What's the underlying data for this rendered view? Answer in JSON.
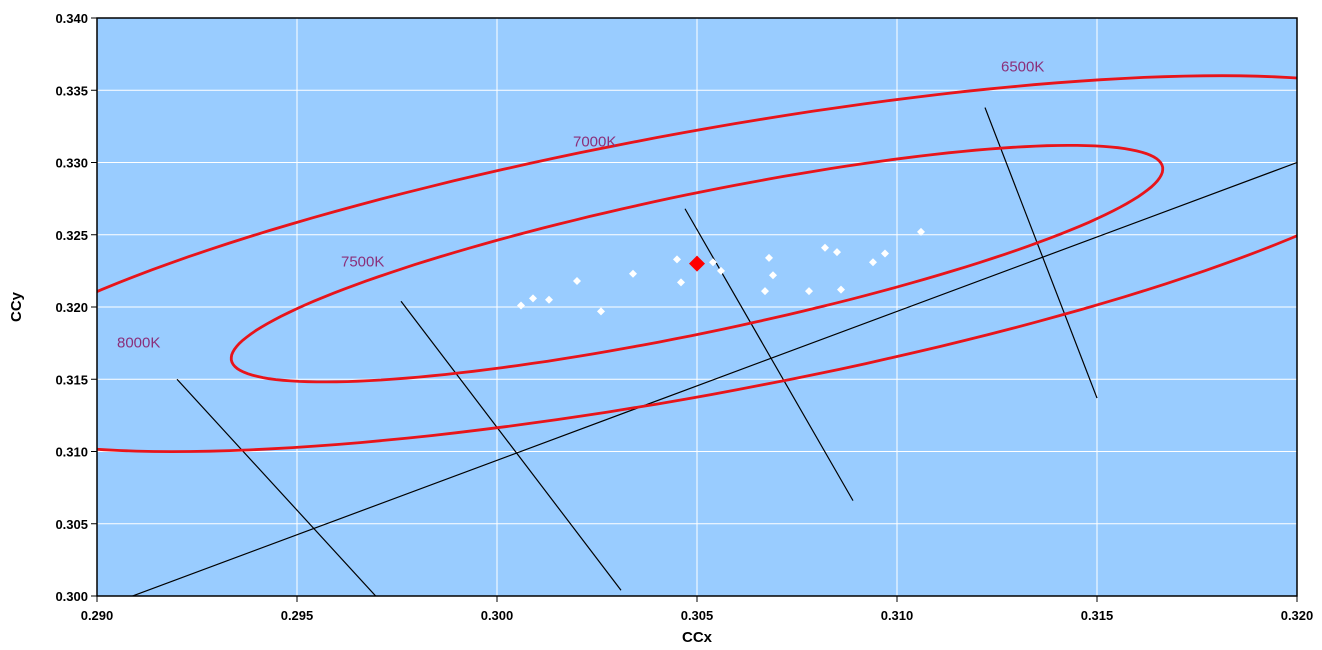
{
  "chart_data": {
    "type": "scatter",
    "title": "",
    "xlabel": "CCx",
    "ylabel": "CCy",
    "xlim": [
      0.29,
      0.32
    ],
    "ylim": [
      0.3,
      0.34
    ],
    "xticks": [
      "0.290",
      "0.295",
      "0.300",
      "0.305",
      "0.310",
      "0.315",
      "0.320"
    ],
    "yticks": [
      "0.300",
      "0.305",
      "0.310",
      "0.315",
      "0.320",
      "0.325",
      "0.330",
      "0.335",
      "0.340"
    ],
    "grid": true,
    "colors": {
      "plot_background": "#99ccff",
      "grid": "#ffffff",
      "ellipse": "#e8141a",
      "points": "#ffffff",
      "mean_point": "#ff0000",
      "lines": "#000000",
      "cct_labels": "#8b2f7a"
    },
    "points": [
      {
        "x": 0.3006,
        "y": 0.3201
      },
      {
        "x": 0.3009,
        "y": 0.3206
      },
      {
        "x": 0.3013,
        "y": 0.3205
      },
      {
        "x": 0.302,
        "y": 0.3218
      },
      {
        "x": 0.3026,
        "y": 0.3197
      },
      {
        "x": 0.3034,
        "y": 0.3223
      },
      {
        "x": 0.3045,
        "y": 0.3233
      },
      {
        "x": 0.3046,
        "y": 0.3217
      },
      {
        "x": 0.3054,
        "y": 0.3231
      },
      {
        "x": 0.3056,
        "y": 0.3225
      },
      {
        "x": 0.3067,
        "y": 0.3211
      },
      {
        "x": 0.3068,
        "y": 0.3234
      },
      {
        "x": 0.3069,
        "y": 0.3222
      },
      {
        "x": 0.3078,
        "y": 0.3211
      },
      {
        "x": 0.3082,
        "y": 0.3241
      },
      {
        "x": 0.3085,
        "y": 0.3238
      },
      {
        "x": 0.3086,
        "y": 0.3212
      },
      {
        "x": 0.3094,
        "y": 0.3231
      },
      {
        "x": 0.3097,
        "y": 0.3237
      },
      {
        "x": 0.3106,
        "y": 0.3252
      }
    ],
    "mean_point": {
      "x": 0.305,
      "y": 0.323
    },
    "ellipses": [
      {
        "center": [
          0.305,
          0.323
        ],
        "semi_major": 0.0136,
        "semi_minor": 0.0042,
        "angle_deg": 32.9
      },
      {
        "center": [
          0.305,
          0.323
        ],
        "semi_major": 0.0212,
        "semi_minor": 0.0081,
        "angle_deg": 31.3
      }
    ],
    "blackbody_line": {
      "x": [
        0.2905,
        0.32
      ],
      "y": [
        0.2996,
        0.33
      ]
    },
    "isotemperature_lines": [
      {
        "label": "8000K",
        "x": [
          0.292,
          0.297
        ],
        "y": [
          0.315,
          0.2999
        ],
        "label_pos": [
          0.2905,
          0.3172
        ]
      },
      {
        "label": "7500K",
        "x": [
          0.2976,
          0.3031
        ],
        "y": [
          0.3204,
          0.3004
        ],
        "label_pos": [
          0.2961,
          0.3228
        ]
      },
      {
        "label": "7000K",
        "x": [
          0.3047,
          0.3089
        ],
        "y": [
          0.3268,
          0.3066
        ],
        "label_pos": [
          0.3019,
          0.3311
        ]
      },
      {
        "label": "6500K",
        "x": [
          0.3122,
          0.315
        ],
        "y": [
          0.3338,
          0.3137
        ],
        "label_pos": [
          0.3126,
          0.3363
        ]
      }
    ]
  }
}
